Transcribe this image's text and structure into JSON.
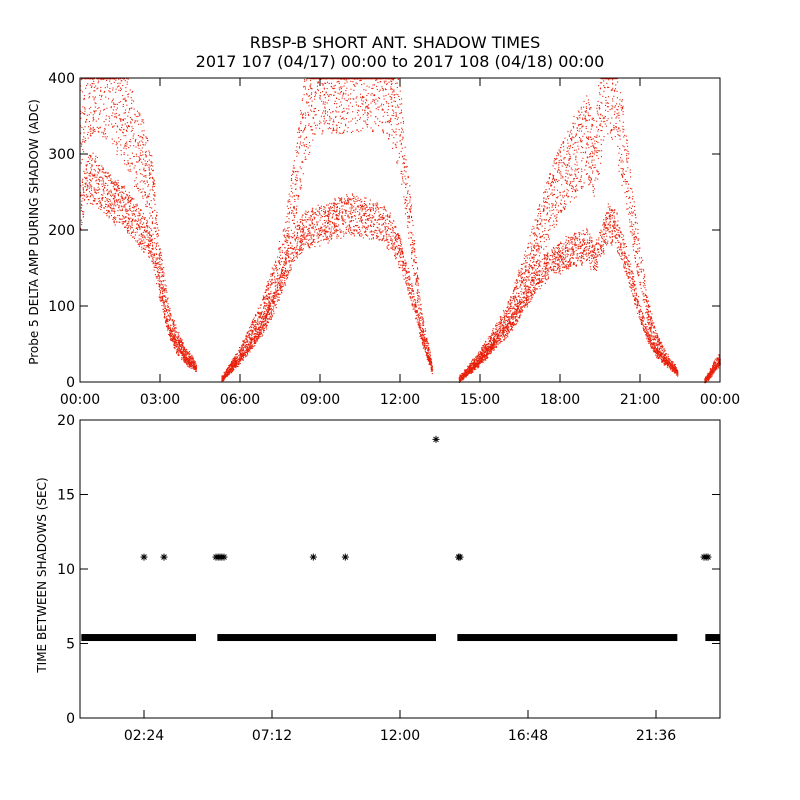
{
  "title": "RBSP-B SHORT ANT. SHADOW TIMES",
  "subtitle": "2017 107 (04/17) 00:00 to 2017 108 (04/18) 00:00",
  "chart_data": [
    {
      "type": "scatter",
      "ylabel": "Probe 5 DELTA AMP DURING SHADOW (ADC)",
      "xlabel": "",
      "xlim": [
        0,
        24
      ],
      "ylim": [
        0,
        400
      ],
      "x_ticks": [
        0,
        3,
        6,
        9,
        12,
        15,
        18,
        21,
        24
      ],
      "x_tick_labels": [
        "00:00",
        "03:00",
        "06:00",
        "09:00",
        "12:00",
        "15:00",
        "18:00",
        "21:00",
        "00:00"
      ],
      "y_ticks": [
        0,
        100,
        200,
        300,
        400
      ],
      "y_tick_labels": [
        "0",
        "100",
        "200",
        "300",
        "400"
      ],
      "point_color": "#e8200a",
      "series": [
        {
          "band": "upper",
          "x": [
            0,
            0.3,
            0.6,
            0.9,
            1.2,
            1.5,
            1.8,
            2.1,
            2.4,
            2.7,
            3.0,
            3.3,
            3.6,
            3.9,
            4.2,
            4.35
          ],
          "y": [
            340,
            390,
            400,
            395,
            380,
            360,
            340,
            310,
            290,
            250,
            150,
            90,
            60,
            40,
            28,
            22
          ]
        },
        {
          "band": "lower",
          "x": [
            0,
            0.3,
            0.6,
            0.9,
            1.2,
            1.5,
            1.8,
            2.1,
            2.4,
            2.7,
            3.0,
            3.3,
            3.6,
            3.9,
            4.2,
            4.35
          ],
          "y": [
            230,
            270,
            265,
            250,
            240,
            235,
            225,
            210,
            195,
            180,
            120,
            70,
            45,
            30,
            22,
            18
          ]
        },
        {
          "band": "upper",
          "x": [
            5.3,
            5.6,
            6.0,
            6.4,
            6.8,
            7.2,
            7.6,
            8.0,
            8.4,
            8.8,
            9.2,
            9.6,
            10.0,
            10.4,
            10.8,
            11.2,
            11.6,
            12.0,
            12.4,
            12.8,
            13.2
          ],
          "y": [
            5,
            20,
            40,
            65,
            90,
            130,
            170,
            250,
            340,
            395,
            400,
            400,
            400,
            400,
            400,
            400,
            390,
            330,
            200,
            80,
            20
          ]
        },
        {
          "band": "lower",
          "x": [
            5.3,
            5.6,
            6.0,
            6.4,
            6.8,
            7.2,
            7.6,
            8.0,
            8.4,
            8.8,
            9.2,
            9.6,
            10.0,
            10.4,
            10.8,
            11.2,
            11.6,
            12.0,
            12.4,
            12.8,
            13.2
          ],
          "y": [
            3,
            15,
            30,
            50,
            70,
            100,
            140,
            180,
            200,
            205,
            210,
            215,
            220,
            220,
            215,
            210,
            200,
            170,
            120,
            60,
            15
          ]
        },
        {
          "band": "upper",
          "x": [
            14.2,
            14.6,
            15.0,
            15.4,
            15.8,
            16.2,
            16.6,
            17.0,
            17.4,
            17.8,
            18.2,
            18.6,
            19.0,
            19.3,
            19.6,
            19.8,
            20.1,
            20.4,
            20.7,
            21.0,
            21.3,
            21.6,
            22.0,
            22.4
          ],
          "y": [
            5,
            20,
            35,
            55,
            75,
            100,
            140,
            180,
            215,
            250,
            280,
            300,
            320,
            290,
            380,
            400,
            360,
            300,
            220,
            150,
            90,
            55,
            30,
            15
          ]
        },
        {
          "band": "lower",
          "x": [
            14.2,
            14.6,
            15.0,
            15.4,
            15.8,
            16.2,
            16.6,
            17.0,
            17.4,
            17.8,
            18.2,
            18.6,
            19.0,
            19.3,
            19.6,
            19.8,
            20.1,
            20.4,
            20.7,
            21.0,
            21.3,
            21.6,
            22.0,
            22.4
          ],
          "y": [
            3,
            15,
            28,
            45,
            62,
            80,
            105,
            130,
            150,
            160,
            170,
            175,
            180,
            160,
            190,
            210,
            200,
            170,
            130,
            90,
            60,
            40,
            25,
            12
          ]
        },
        {
          "band": "upper",
          "x": [
            23.4,
            23.6,
            23.8,
            24.0
          ],
          "y": [
            2,
            12,
            25,
            35
          ]
        },
        {
          "band": "lower",
          "x": [
            23.4,
            23.6,
            23.8,
            24.0
          ],
          "y": [
            1,
            8,
            18,
            28
          ]
        }
      ]
    },
    {
      "type": "scatter",
      "ylabel": "TIME BETWEEN SHADOWS (SEC)",
      "xlabel": "",
      "xlim": [
        0,
        24
      ],
      "ylim": [
        0,
        20
      ],
      "x_ticks": [
        2.4,
        7.2,
        12.0,
        16.8,
        21.6
      ],
      "x_tick_labels": [
        "02:24",
        "07:12",
        "12:00",
        "16:48",
        "21:36"
      ],
      "y_ticks": [
        0,
        5,
        10,
        15,
        20
      ],
      "y_tick_labels": [
        "0",
        "5",
        "10",
        "15",
        "20"
      ],
      "point_color": "#000000",
      "baseline": {
        "y": 5.4,
        "segments": [
          [
            0.05,
            4.35
          ],
          [
            5.15,
            13.35
          ],
          [
            14.15,
            22.4
          ],
          [
            23.45,
            24.0
          ]
        ]
      },
      "outliers": {
        "x": [
          2.4,
          3.15,
          5.1,
          5.18,
          5.25,
          5.32,
          5.4,
          8.75,
          9.95,
          13.35,
          14.2,
          14.25,
          23.4,
          23.48,
          23.55
        ],
        "y": [
          10.8,
          10.8,
          10.8,
          10.8,
          10.8,
          10.8,
          10.8,
          10.8,
          10.8,
          18.7,
          10.8,
          10.8,
          10.8,
          10.8,
          10.8
        ]
      }
    }
  ]
}
